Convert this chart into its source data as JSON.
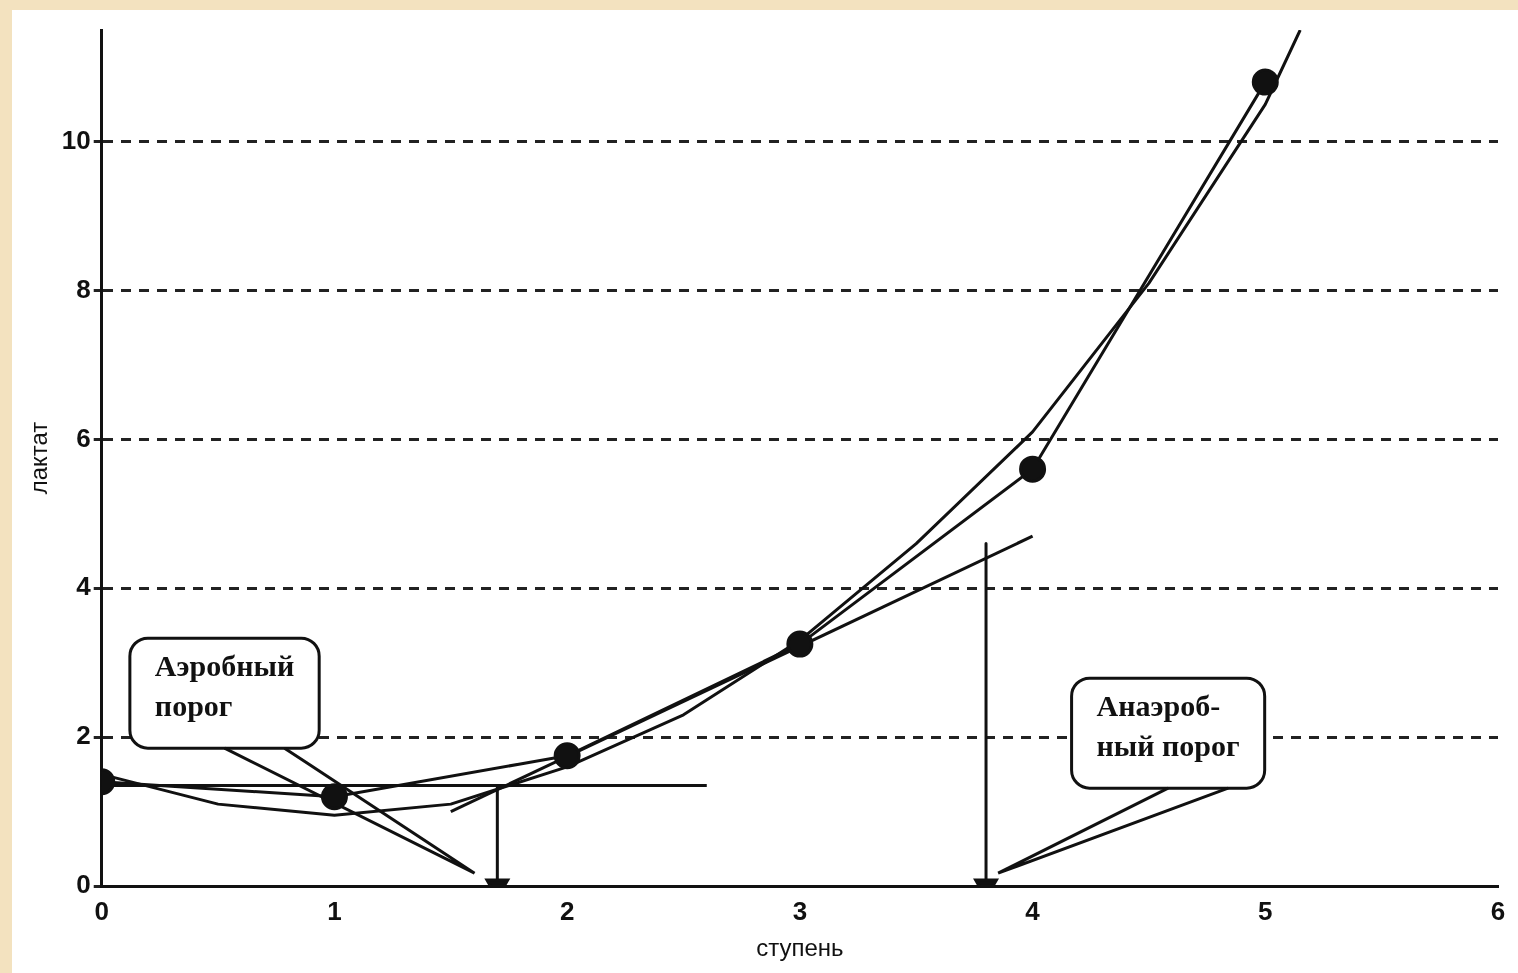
{
  "chart_data": {
    "type": "line",
    "xlabel": "ступень",
    "ylabel": "лактат",
    "xlim": [
      0,
      6
    ],
    "xticks": [
      0,
      1,
      2,
      3,
      4,
      5,
      6
    ],
    "ylim": [
      0,
      11.5
    ],
    "yticks": [
      0,
      2,
      4,
      6,
      8,
      10
    ],
    "grid": "y",
    "line_style": "solid",
    "series": [
      {
        "type": "scatter",
        "color": "#111111",
        "marker": "circle",
        "x": [
          0,
          1,
          2,
          3,
          4,
          5
        ],
        "values": [
          1.4,
          1.2,
          1.75,
          3.25,
          5.6,
          10.8
        ]
      },
      {
        "color": "#111111",
        "marker": "none",
        "x": [
          0,
          0.5,
          1,
          1.5,
          2,
          2.5,
          3,
          3.5,
          4,
          4.5,
          5,
          5.15
        ],
        "values": [
          1.5,
          1.1,
          0.95,
          1.1,
          1.6,
          2.3,
          3.3,
          4.6,
          6.1,
          8.1,
          10.5,
          11.5
        ]
      },
      {
        "color": "#111111",
        "marker": "none",
        "x": [
          0,
          1,
          2,
          3,
          4,
          5
        ],
        "values": [
          1.4,
          1.2,
          1.75,
          3.25,
          5.6,
          10.8
        ]
      },
      {
        "color": "#111111",
        "marker": "none",
        "x": [
          0,
          2.6
        ],
        "values": [
          1.35,
          1.35
        ]
      },
      {
        "color": "#111111",
        "marker": "none",
        "x": [
          1.5,
          4.0
        ],
        "values": [
          1.0,
          4.7
        ]
      },
      {
        "color": "#111111",
        "marker": "triangle",
        "x": [
          1.7,
          1.7
        ],
        "values": [
          1.35,
          0
        ]
      },
      {
        "color": "#111111",
        "marker": "triangle",
        "x": [
          3.8,
          3.8
        ],
        "values": [
          4.6,
          0
        ]
      }
    ],
    "annotations": [
      "Аэробный\nпорог",
      "Анаэроб-\nный порог"
    ]
  }
}
